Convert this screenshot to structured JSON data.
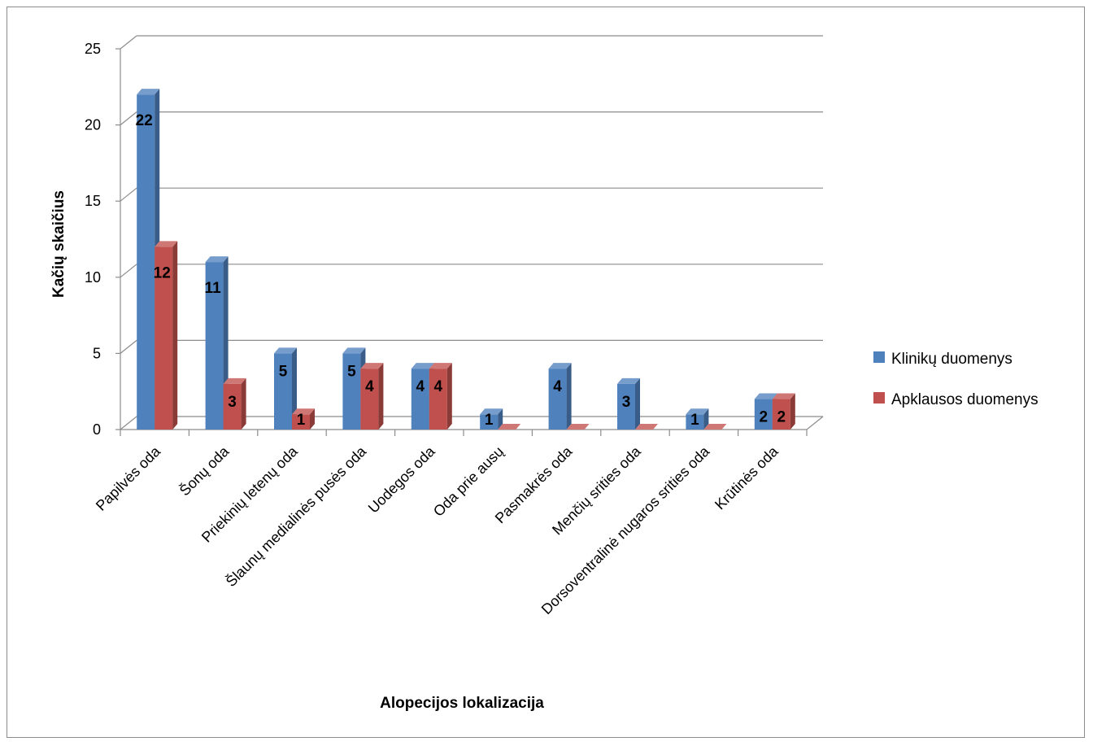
{
  "chart_data": {
    "type": "bar",
    "title": "",
    "xlabel": "Alopecijos lokalizacija",
    "ylabel": "Kačių skaičius",
    "ylim": [
      0,
      25
    ],
    "yticks": [
      0,
      5,
      10,
      15,
      20,
      25
    ],
    "grid": true,
    "legend_position": "right",
    "categories": [
      "Papilvės oda",
      "Šonų oda",
      "Priekinių letenų oda",
      "Šlaunų medialinės pusės oda",
      "Uodegos oda",
      "Oda prie ausų",
      "Pasmakrės oda",
      "Menčių srities oda",
      "Dorsoventralinė nugaros srities oda",
      "Krūtinės oda"
    ],
    "series": [
      {
        "name": "Klinikų duomenys",
        "color": "#4F81BD",
        "values": [
          22,
          11,
          5,
          5,
          4,
          1,
          4,
          3,
          1,
          2
        ],
        "labels": [
          "22",
          "11",
          "5",
          "5",
          "4",
          "1",
          "4",
          "3",
          "1",
          "2"
        ]
      },
      {
        "name": "Apklausos duomenys",
        "color": "#C0504D",
        "values": [
          12,
          3,
          1,
          4,
          4,
          0,
          0,
          0,
          0,
          2
        ],
        "labels": [
          "12",
          "3",
          "1",
          "4",
          "4",
          "",
          "",
          "",
          "",
          "2"
        ]
      }
    ]
  }
}
